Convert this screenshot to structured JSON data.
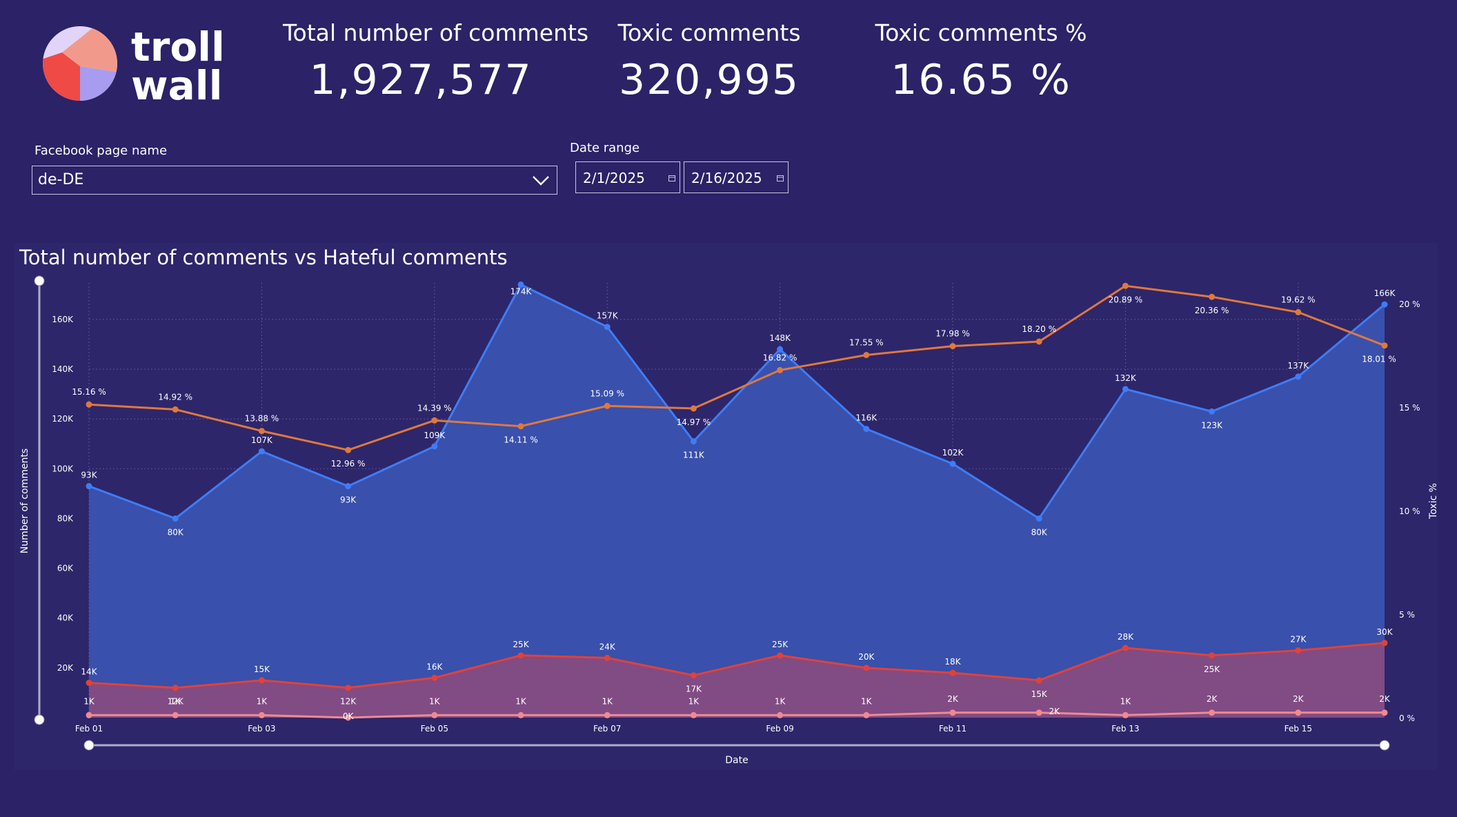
{
  "logo": {
    "text_line1": "troll",
    "text_line2": "wall"
  },
  "kpis": [
    {
      "label": "Total number of comments",
      "value": "1,927,577"
    },
    {
      "label": "Toxic comments",
      "value": "320,995"
    },
    {
      "label": "Toxic comments %",
      "value": "16.65 %"
    }
  ],
  "filters": {
    "page_label": "Facebook page name",
    "page_value": "de-DE",
    "date_label": "Date range",
    "date_start": "2/1/2025",
    "date_end": "2/16/2025"
  },
  "colors": {
    "background": "#2b2267",
    "total_line": "#3f7cf5",
    "total_fill": "#3a52b0",
    "toxic_line": "#e0423a",
    "toxic_fill": "#8a4a80",
    "pct_line": "#e0783e",
    "hateful_line": "#f08a90"
  },
  "icons": {
    "dropdown": "chevron-down-icon",
    "calendar": "calendar-icon"
  },
  "chart_data": {
    "type": "line",
    "title": "Total number of comments vs Hateful comments",
    "xlabel": "Date",
    "ylabel": "Number of comments",
    "y2label": "Toxic %",
    "x_ticks": [
      "Feb 01",
      "Feb 03",
      "Feb 05",
      "Feb 07",
      "Feb 09",
      "Feb 11",
      "Feb 13",
      "Feb 15"
    ],
    "y_ticks": [
      "20K",
      "40K",
      "60K",
      "80K",
      "100K",
      "120K",
      "140K",
      "160K"
    ],
    "y2_ticks": [
      "0 %",
      "5 %",
      "10 %",
      "15 %",
      "20 %"
    ],
    "ylim": [
      0,
      175000
    ],
    "y2lim": [
      0,
      21
    ],
    "x": [
      "2025-02-01",
      "2025-02-02",
      "2025-02-03",
      "2025-02-04",
      "2025-02-05",
      "2025-02-06",
      "2025-02-07",
      "2025-02-08",
      "2025-02-09",
      "2025-02-10",
      "2025-02-11",
      "2025-02-12",
      "2025-02-13",
      "2025-02-14",
      "2025-02-15",
      "2025-02-16"
    ],
    "series": [
      {
        "axis": "left",
        "style": "area",
        "values": [
          93000,
          80000,
          107000,
          93000,
          109000,
          174000,
          157000,
          111000,
          148000,
          116000,
          102000,
          80000,
          132000,
          123000,
          137000,
          166000
        ],
        "labels": [
          "93K",
          "80K",
          "107K",
          "93K",
          "109K",
          "174K",
          "157K",
          "111K",
          "148K",
          "116K",
          "102K",
          "80K",
          "132K",
          "123K",
          "137K",
          "166K"
        ]
      },
      {
        "axis": "left",
        "style": "area",
        "values": [
          14000,
          12000,
          15000,
          12000,
          16000,
          25000,
          24000,
          17000,
          25000,
          20000,
          18000,
          15000,
          28000,
          25000,
          27000,
          30000
        ],
        "labels": [
          "14K",
          "12K",
          "15K",
          "12K",
          "16K",
          "25K",
          "24K",
          "17K",
          "25K",
          "20K",
          "18K",
          "15K",
          "28K",
          "25K",
          "27K",
          "30K"
        ]
      },
      {
        "axis": "left",
        "style": "line",
        "values": [
          1000,
          1000,
          1000,
          0,
          1000,
          1000,
          1000,
          1000,
          1000,
          1000,
          2000,
          2000,
          1000,
          2000,
          2000,
          2000
        ],
        "labels": [
          "1K",
          "1K",
          "1K",
          "0K",
          "1K",
          "1K",
          "1K",
          "1K",
          "1K",
          "1K",
          "2K",
          "2K",
          "1K",
          "2K",
          "2K",
          "2K"
        ]
      },
      {
        "axis": "right",
        "style": "line",
        "values": [
          15.16,
          14.92,
          13.88,
          12.96,
          14.39,
          14.11,
          15.09,
          14.97,
          16.82,
          17.55,
          17.98,
          18.2,
          20.89,
          20.36,
          19.62,
          18.01
        ],
        "labels": [
          "15.16 %",
          "14.92 %",
          "13.88 %",
          "12.96 %",
          "14.39 %",
          "14.11 %",
          "15.09 %",
          "14.97 %",
          "16.82 %",
          "17.55 %",
          "17.98 %",
          "18.20 %",
          "20.89 %",
          "20.36 %",
          "19.62 %",
          "18.01 %"
        ]
      }
    ],
    "grid": true,
    "legend": "none"
  }
}
